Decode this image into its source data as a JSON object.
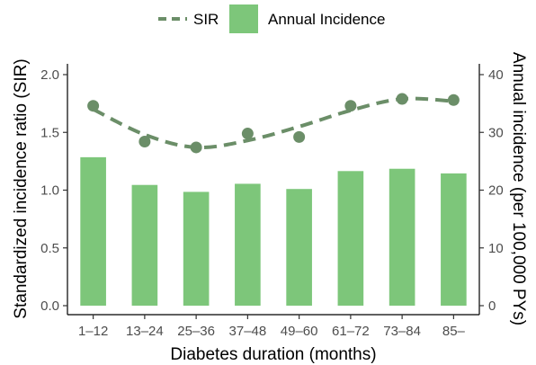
{
  "chart_data": {
    "type": "bar+line",
    "categories": [
      "1–12",
      "13–24",
      "25–36",
      "37–48",
      "49–60",
      "61–72",
      "73–84",
      "85–"
    ],
    "xlabel": "Diabetes duration (months)",
    "ylabel_left": "Standardized incidence ratio (SIR)",
    "ylabel_right": "Annual incidence (per 100,000 PYs)",
    "ylim_left": [
      0,
      2.0
    ],
    "ylim_right": [
      0,
      40
    ],
    "yticks_left": [
      "0.0",
      "0.5",
      "1.0",
      "1.5",
      "2.0"
    ],
    "yticks_right": [
      "0",
      "10",
      "20",
      "30",
      "40"
    ],
    "grid": false,
    "legend_position": "top",
    "series": [
      {
        "name": "SIR",
        "kind": "points-with-dashed-smooth-line",
        "axis": "left",
        "color": "#6b8e68",
        "values": [
          1.73,
          1.42,
          1.37,
          1.49,
          1.46,
          1.73,
          1.79,
          1.78
        ],
        "smooth_values": [
          1.7,
          1.48,
          1.37,
          1.43,
          1.55,
          1.69,
          1.79,
          1.77
        ]
      },
      {
        "name": "Annual Incidence",
        "kind": "bar",
        "axis": "right",
        "color": "#7dc67a",
        "values": [
          25.7,
          20.9,
          19.7,
          21.1,
          20.2,
          23.3,
          23.7,
          22.9
        ]
      }
    ]
  }
}
